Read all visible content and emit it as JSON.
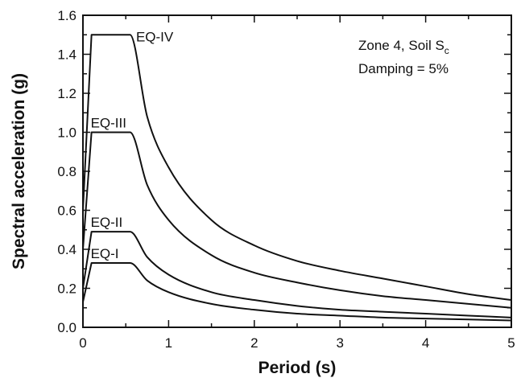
{
  "chart_data": {
    "type": "line",
    "title": "",
    "xlabel": "Period (s)",
    "ylabel": "Spectral acceleration (g)",
    "xlim": [
      0,
      5
    ],
    "ylim": [
      0,
      1.6
    ],
    "xticks": [
      0,
      1,
      2,
      3,
      4,
      5
    ],
    "xtick_labels": [
      "0",
      "1",
      "2",
      "3",
      "4",
      "5"
    ],
    "yticks": [
      0,
      0.2,
      0.4,
      0.6,
      0.8,
      1.0,
      1.2,
      1.4,
      1.6
    ],
    "ytick_labels": [
      "0.0",
      "0.2",
      "0.4",
      "0.6",
      "0.8",
      "1.0",
      "1.2",
      "1.4",
      "1.6"
    ],
    "grid": false,
    "annotation_line1_main": "Zone 4, Soil S",
    "annotation_line1_sub": "c",
    "annotation_line2": "Damping = 5%",
    "series": [
      {
        "name": "EQ-IV",
        "x": [
          0,
          0.1,
          0.55,
          0.75,
          1.0,
          1.5,
          2.0,
          2.5,
          3.0,
          3.5,
          4.0,
          4.5,
          5.0
        ],
        "y": [
          0.6,
          1.5,
          1.5,
          1.08,
          0.82,
          0.55,
          0.42,
          0.34,
          0.29,
          0.25,
          0.21,
          0.17,
          0.14
        ]
      },
      {
        "name": "EQ-III",
        "x": [
          0,
          0.1,
          0.55,
          0.75,
          1.0,
          1.5,
          2.0,
          2.5,
          3.0,
          3.5,
          4.0,
          4.5,
          5.0
        ],
        "y": [
          0.4,
          1.0,
          1.0,
          0.73,
          0.55,
          0.37,
          0.28,
          0.23,
          0.19,
          0.16,
          0.14,
          0.12,
          0.1
        ]
      },
      {
        "name": "EQ-II",
        "x": [
          0,
          0.1,
          0.55,
          0.75,
          1.0,
          1.5,
          2.0,
          2.5,
          3.0,
          3.5,
          4.0,
          4.5,
          5.0
        ],
        "y": [
          0.2,
          0.49,
          0.49,
          0.36,
          0.27,
          0.18,
          0.14,
          0.11,
          0.09,
          0.08,
          0.07,
          0.06,
          0.05
        ]
      },
      {
        "name": "EQ-I",
        "x": [
          0,
          0.1,
          0.55,
          0.75,
          1.0,
          1.5,
          2.0,
          2.5,
          3.0,
          3.5,
          4.0,
          4.5,
          5.0
        ],
        "y": [
          0.13,
          0.33,
          0.33,
          0.24,
          0.18,
          0.12,
          0.09,
          0.07,
          0.06,
          0.05,
          0.045,
          0.04,
          0.035
        ]
      }
    ]
  }
}
